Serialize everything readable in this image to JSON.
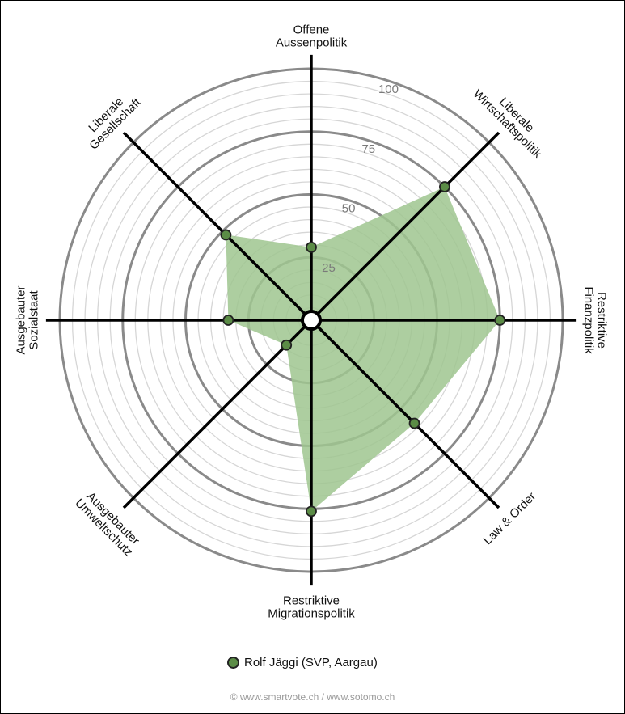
{
  "chart_data": {
    "type": "radar",
    "axes": [
      "Offene Aussenpolitik",
      "Liberale Wirtschaftspolitik",
      "Restriktive Finanzpolitik",
      "Law & Order",
      "Restriktive Migrationspolitik",
      "Ausgebauter Umweltschutz",
      "Ausgebauter Sozialstaat",
      "Liberale Gesellschaft"
    ],
    "axis_label_lines": [
      [
        "Offene",
        "Aussenpolitik"
      ],
      [
        "Liberale",
        "Wirtschaftspolitik"
      ],
      [
        "Restriktive",
        "Finanzpolitik"
      ],
      [
        "Law & Order"
      ],
      [
        "Restriktive",
        "Migrationspolitik"
      ],
      [
        "Ausgebauter",
        "Umweltschutz"
      ],
      [
        "Ausgebauter",
        "Sozialstaat"
      ],
      [
        "Liberale",
        "Gesellschaft"
      ]
    ],
    "range": [
      0,
      100
    ],
    "ticks": [
      25,
      50,
      75,
      100
    ],
    "tick_labels": [
      "25",
      "50",
      "75",
      "100"
    ],
    "series": [
      {
        "name": "Rolf Jäggi (SVP, Aargau)",
        "values": [
          29,
          75,
          75,
          58,
          76,
          14,
          33,
          48
        ],
        "color": "#5b8c46",
        "fill": "#9fc58f"
      }
    ],
    "legend": "bottom-center"
  },
  "legend": {
    "label": "Rolf Jäggi (SVP, Aargau)"
  },
  "footer": {
    "text": "© www.smartvote.ch / www.sotomo.ch"
  }
}
